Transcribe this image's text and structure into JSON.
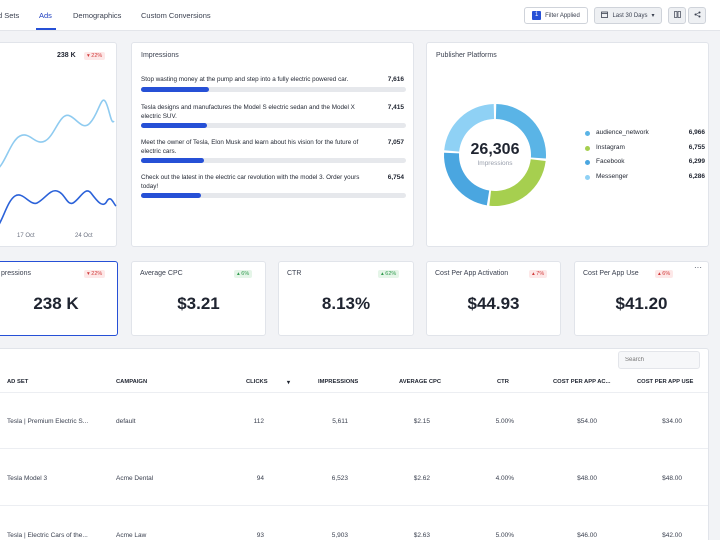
{
  "nav": {
    "tabs": [
      "d Sets",
      "Ads",
      "Demographics",
      "Custom Conversions"
    ],
    "filter_badge": "1",
    "filter_label": "Filter Applied",
    "date_range": "Last 30 Days"
  },
  "trend_card": {
    "value": "238 K",
    "delta": "▾ 22%",
    "x_ticks": [
      "17 Oct",
      "24 Oct"
    ]
  },
  "impressions_card": {
    "title": "Impressions",
    "items": [
      {
        "text": "Stop wasting money at the pump and step into a fully electric powered car.",
        "value": "7,616",
        "fraction": 1.0
      },
      {
        "text": "Tesla designs and manufactures the Model S electric sedan and the Model X electric SUV.",
        "value": "7,415",
        "fraction": 0.974
      },
      {
        "text": "Meet the owner of Tesla, Elon Musk and learn about his vision for the future of electric cars.",
        "value": "7,057",
        "fraction": 0.927
      },
      {
        "text": "Check out the latest in the electric car revolution with the model 3. Order yours today!",
        "value": "6,754",
        "fraction": 0.887
      }
    ]
  },
  "publisher_card": {
    "title": "Publisher Platforms",
    "total": "26,306",
    "total_label": "Impressions",
    "segments": [
      {
        "label": "audience_network",
        "value": "6,966",
        "raw": 6966,
        "color": "#5ab4e6"
      },
      {
        "label": "Instagram",
        "value": "6,755",
        "raw": 6755,
        "color": "#a6cf4f"
      },
      {
        "label": "Facebook",
        "value": "6,299",
        "raw": 6299,
        "color": "#4aa6e0"
      },
      {
        "label": "Messenger",
        "value": "6,286",
        "raw": 6286,
        "color": "#8fd1f5"
      }
    ]
  },
  "kpis": [
    {
      "title": "pressions",
      "value": "238 K",
      "delta": "▾ 22%",
      "dir": "down"
    },
    {
      "title": "Average CPC",
      "value": "$3.21",
      "delta": "▴ 6%",
      "dir": "up"
    },
    {
      "title": "CTR",
      "value": "8.13%",
      "delta": "▴ 62%",
      "dir": "up"
    },
    {
      "title": "Cost Per App Activation",
      "value": "$44.93",
      "delta": "▴ 7%",
      "dir": "down"
    },
    {
      "title": "Cost Per App Use",
      "value": "$41.20",
      "delta": "▴ 6%",
      "dir": "down"
    }
  ],
  "table": {
    "search_placeholder": "Search",
    "headers": [
      "AD SET",
      "CAMPAIGN",
      "CLICKS",
      "IMPRESSIONS",
      "AVERAGE CPC",
      "CTR",
      "COST PER APP AC...",
      "COST PER APP USE"
    ],
    "rows": [
      [
        "Tesla | Premium Electric S...",
        "default",
        "112",
        "5,611",
        "$2.15",
        "5.00%",
        "$54.00",
        "$34.00"
      ],
      [
        "Tesla Model 3",
        "Acme Dental",
        "94",
        "6,523",
        "$2.62",
        "4.00%",
        "$48.00",
        "$48.00"
      ],
      [
        "Tesla | Electric Cars of the...",
        "Acme Law",
        "93",
        "5,903",
        "$2.63",
        "5.00%",
        "$46.00",
        "$42.00"
      ]
    ]
  },
  "colors": {
    "accent": "#2650d6",
    "line_light": "#8fcbf0",
    "line_dark": "#2b62d9"
  }
}
